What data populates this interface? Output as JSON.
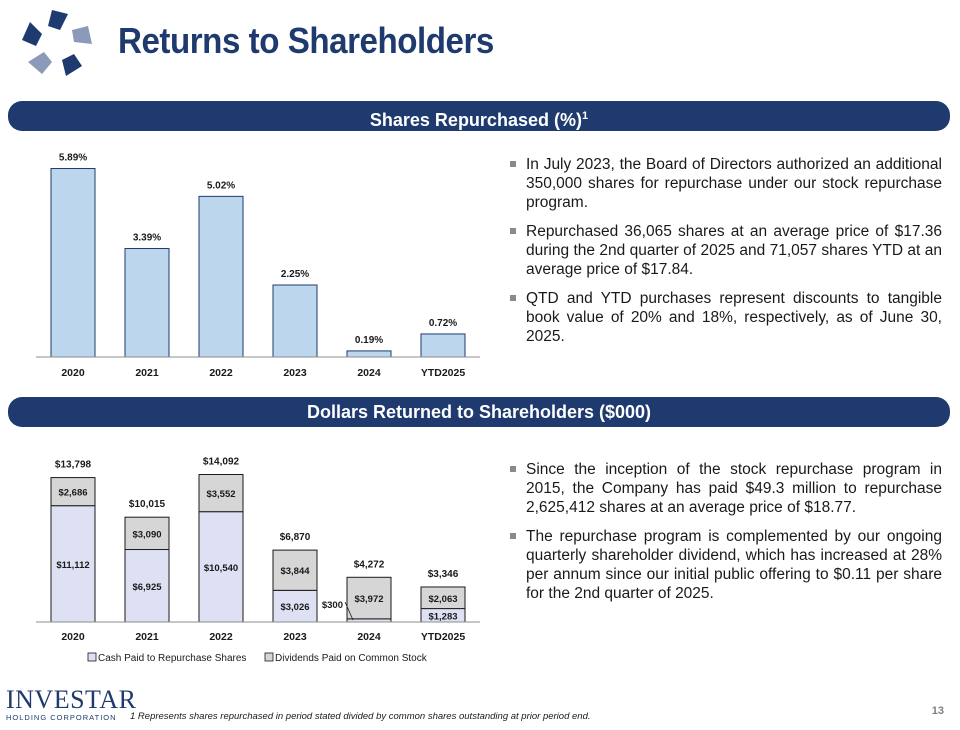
{
  "header": {
    "title": "Returns to Shareholders",
    "logo_icon": "star-logo-icon"
  },
  "banners": {
    "shares": "Shares Repurchased (%)",
    "shares_sup": "1",
    "dollars": "Dollars Returned to Shareholders ($000)"
  },
  "bullets_top": [
    "In July 2023, the Board of Directors authorized an additional 350,000 shares for repurchase under our stock repurchase program.",
    "Repurchased 36,065 shares at an average price of $17.36 during the 2nd quarter of 2025 and 71,057 shares YTD at an average price of $17.84.",
    "QTD and YTD purchases represent discounts to tangible book value of 20% and 18%, respectively, as of June 30, 2025."
  ],
  "bullets_bottom": [
    "Since the inception of the stock repurchase program in 2015, the Company has paid $49.3 million to repurchase 2,625,412 shares at an average price of $18.77.",
    "The repurchase program is complemented by our ongoing quarterly shareholder dividend, which has increased at 28% per annum since our initial public offering to $0.11 per share for the 2nd quarter of 2025."
  ],
  "footer": {
    "footnote": "1 Represents shares repurchased in period stated divided by common shares outstanding at prior period end.",
    "page_number": "13",
    "brand_name": "INVESTAR",
    "brand_sub": "HOLDING CORPORATION"
  },
  "colors": {
    "navy": "#1f3a6e",
    "bar_blue": "#bcd6ee",
    "bar_lavender": "#dde1f3",
    "bar_gray": "#d6d6d6"
  },
  "chart_data": [
    {
      "type": "bar",
      "categories": [
        "2020",
        "2021",
        "2022",
        "2023",
        "2024",
        "YTD2025"
      ],
      "values": [
        5.89,
        3.39,
        5.02,
        2.25,
        0.19,
        0.72
      ],
      "data_labels": [
        "5.89%",
        "3.39%",
        "5.02%",
        "2.25%",
        "0.19%",
        "0.72%"
      ],
      "title": "Shares Repurchased (%)",
      "ylim": [
        0,
        6.0
      ]
    },
    {
      "type": "bar",
      "stacked": true,
      "categories": [
        "2020",
        "2021",
        "2022",
        "2023",
        "2024",
        "YTD2025"
      ],
      "series": [
        {
          "name": "Cash Paid to Repurchase Shares",
          "values": [
            11112,
            6925,
            10540,
            3026,
            300,
            1283
          ],
          "labels": [
            "$11,112",
            "$6,925",
            "$10,540",
            "$3,026",
            "$300",
            "$1,283"
          ]
        },
        {
          "name": "Dividends Paid on Common Stock",
          "values": [
            2686,
            3090,
            3552,
            3844,
            3972,
            2063
          ],
          "labels": [
            "$2,686",
            "$3,090",
            "$3,552",
            "$3,844",
            "$3,972",
            "$2,063"
          ]
        }
      ],
      "totals": [
        "$13,798",
        "$10,015",
        "$14,092",
        "$6,870",
        "$4,272",
        "$3,346"
      ],
      "title": "Dollars Returned to Shareholders ($000)",
      "legend": "bottom",
      "ylim": [
        0,
        15000
      ]
    }
  ]
}
